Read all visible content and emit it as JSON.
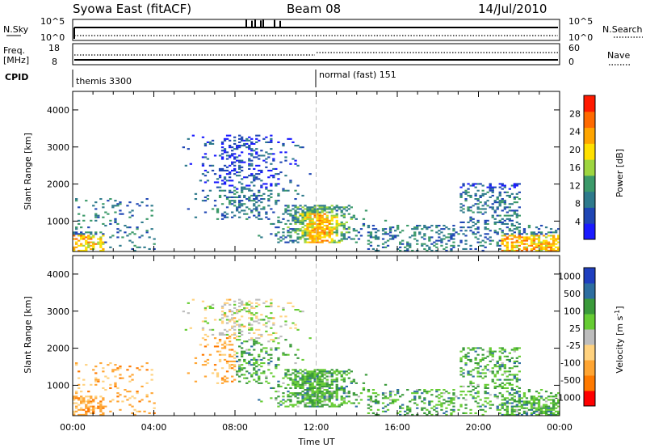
{
  "header": {
    "station": "Syowa East (fitACF)",
    "beam": "Beam 08",
    "date": "14/Jul/2010"
  },
  "colors": {
    "power_scale": [
      "#1a1aff",
      "#1f46b4",
      "#2e7a8c",
      "#3c9a6a",
      "#9ed640",
      "#ffe000",
      "#ffa500",
      "#ff6a00",
      "#ff1a00"
    ],
    "velocity_scale": [
      "#ff0000",
      "#ff7a00",
      "#ffa533",
      "#ffd27f",
      "#bdbdbd",
      "#66cc33",
      "#3a9a3a",
      "#2d6ea0",
      "#1f3fbf"
    ]
  },
  "chart_data": [
    {
      "type": "line",
      "panel": "n-sky-search",
      "left_label": "N.Sky",
      "right_label": "N.Search",
      "left_ticks": [
        "10^5",
        "10^0"
      ],
      "right_ticks": [
        "10^5",
        "10^0"
      ]
    },
    {
      "type": "line",
      "panel": "frequency-nave",
      "left_label_1": "Freq.",
      "left_label_2": "[MHz]",
      "right_label": "Nave",
      "left_ticks": [
        18,
        8
      ],
      "right_ticks": [
        60,
        0
      ]
    },
    {
      "type": "table",
      "panel": "cpid",
      "label": "CPID",
      "segments": [
        {
          "start_hour": 0,
          "label": "themis 3300"
        },
        {
          "start_hour": 12,
          "label": "normal (fast) 151"
        }
      ]
    },
    {
      "type": "heatmap",
      "panel": "power",
      "ylabel": "Slant Range [km]",
      "xlim": [
        0,
        24
      ],
      "ylim": [
        180,
        4500
      ],
      "y_ticks": [
        1000,
        2000,
        3000,
        4000
      ],
      "colorbar_label": "Power [dB]",
      "colorbar_range": [
        0,
        32
      ],
      "colorbar_ticks": [
        4,
        8,
        12,
        16,
        20,
        24,
        28
      ]
    },
    {
      "type": "heatmap",
      "panel": "velocity",
      "ylabel": "Slant Range [km]",
      "xlabel": "Time UT",
      "xlim": [
        0,
        24
      ],
      "ylim": [
        180,
        4500
      ],
      "x_ticks": [
        "00:00",
        "04:00",
        "08:00",
        "12:00",
        "16:00",
        "20:00",
        "00:00"
      ],
      "y_ticks": [
        1000,
        2000,
        3000,
        4000
      ],
      "colorbar_label": "Velocity [m s",
      "colorbar_label_sup": "-1",
      "colorbar_label_close": "]",
      "colorbar_ticks": [
        "1000",
        "500",
        "100",
        "25",
        "-25",
        "-100",
        "-500",
        "-1000"
      ]
    }
  ]
}
